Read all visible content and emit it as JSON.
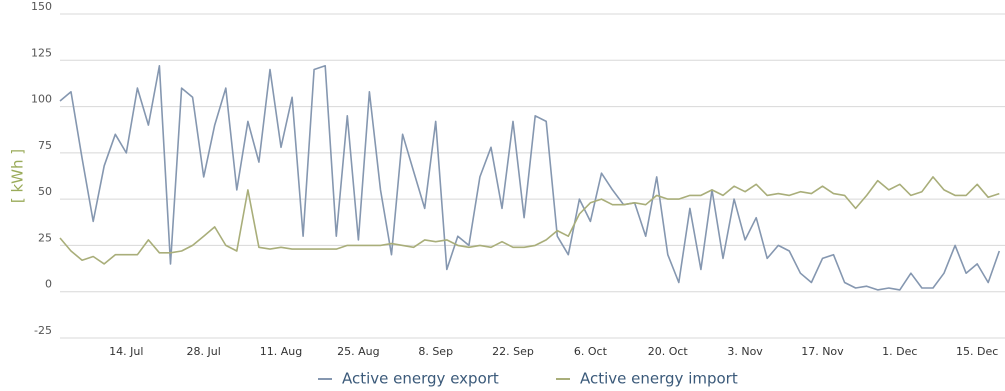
{
  "chart_data": {
    "type": "line",
    "y_label": "[ kWh ]",
    "categories": [
      null,
      null,
      null,
      null,
      null,
      null,
      "14. Jul",
      null,
      null,
      null,
      null,
      null,
      null,
      "28. Jul",
      null,
      null,
      null,
      null,
      null,
      null,
      "11. Aug",
      null,
      null,
      null,
      null,
      null,
      null,
      "25. Aug",
      null,
      null,
      null,
      null,
      null,
      null,
      "8. Sep",
      null,
      null,
      null,
      null,
      null,
      null,
      "22. Sep",
      null,
      null,
      null,
      null,
      null,
      null,
      "6. Oct",
      null,
      null,
      null,
      null,
      null,
      null,
      "20. Oct",
      null,
      null,
      null,
      null,
      null,
      null,
      "3. Nov",
      null,
      null,
      null,
      null,
      null,
      null,
      "17. Nov",
      null,
      null,
      null,
      null,
      null,
      null,
      "1. Dec",
      null,
      null,
      null,
      null,
      null,
      null,
      "15. Dec",
      null,
      null
    ],
    "series": [
      {
        "name": "Active energy export",
        "color": "#8597b0",
        "values": [
          103,
          108,
          72,
          38,
          68,
          85,
          75,
          110,
          90,
          122,
          15,
          110,
          105,
          62,
          90,
          110,
          55,
          92,
          70,
          120,
          78,
          105,
          30,
          120,
          122,
          30,
          95,
          28,
          108,
          55,
          20,
          85,
          65,
          45,
          92,
          12,
          30,
          25,
          62,
          78,
          45,
          92,
          40,
          95,
          92,
          30,
          20,
          50,
          38,
          64,
          55,
          47,
          48,
          30,
          62,
          20,
          5,
          45,
          12,
          55,
          18,
          50,
          28,
          40,
          18,
          25,
          22,
          10,
          5,
          18,
          20,
          5,
          2,
          3,
          1,
          2,
          1,
          10,
          2,
          2,
          10,
          25,
          10,
          15,
          5,
          22
        ]
      },
      {
        "name": "Active energy import",
        "color": "#a9ae7a",
        "values": [
          29,
          22,
          17,
          19,
          15,
          20,
          20,
          20,
          28,
          21,
          21,
          22,
          25,
          30,
          35,
          25,
          22,
          55,
          24,
          23,
          24,
          23,
          23,
          23,
          23,
          23,
          25,
          25,
          25,
          25,
          26,
          25,
          24,
          28,
          27,
          28,
          25,
          24,
          25,
          24,
          27,
          24,
          24,
          25,
          28,
          33,
          30,
          42,
          48,
          50,
          47,
          47,
          48,
          47,
          52,
          50,
          50,
          52,
          52,
          55,
          52,
          57,
          54,
          58,
          52,
          53,
          52,
          54,
          53,
          57,
          53,
          52,
          45,
          52,
          60,
          55,
          58,
          52,
          54,
          62,
          55,
          52,
          52,
          58,
          51,
          53
        ]
      }
    ],
    "ylim": [
      -25,
      150
    ],
    "yticks": [
      -25,
      0,
      25,
      50,
      75,
      100,
      125,
      150
    ],
    "grid": true,
    "legend": "bottom"
  }
}
